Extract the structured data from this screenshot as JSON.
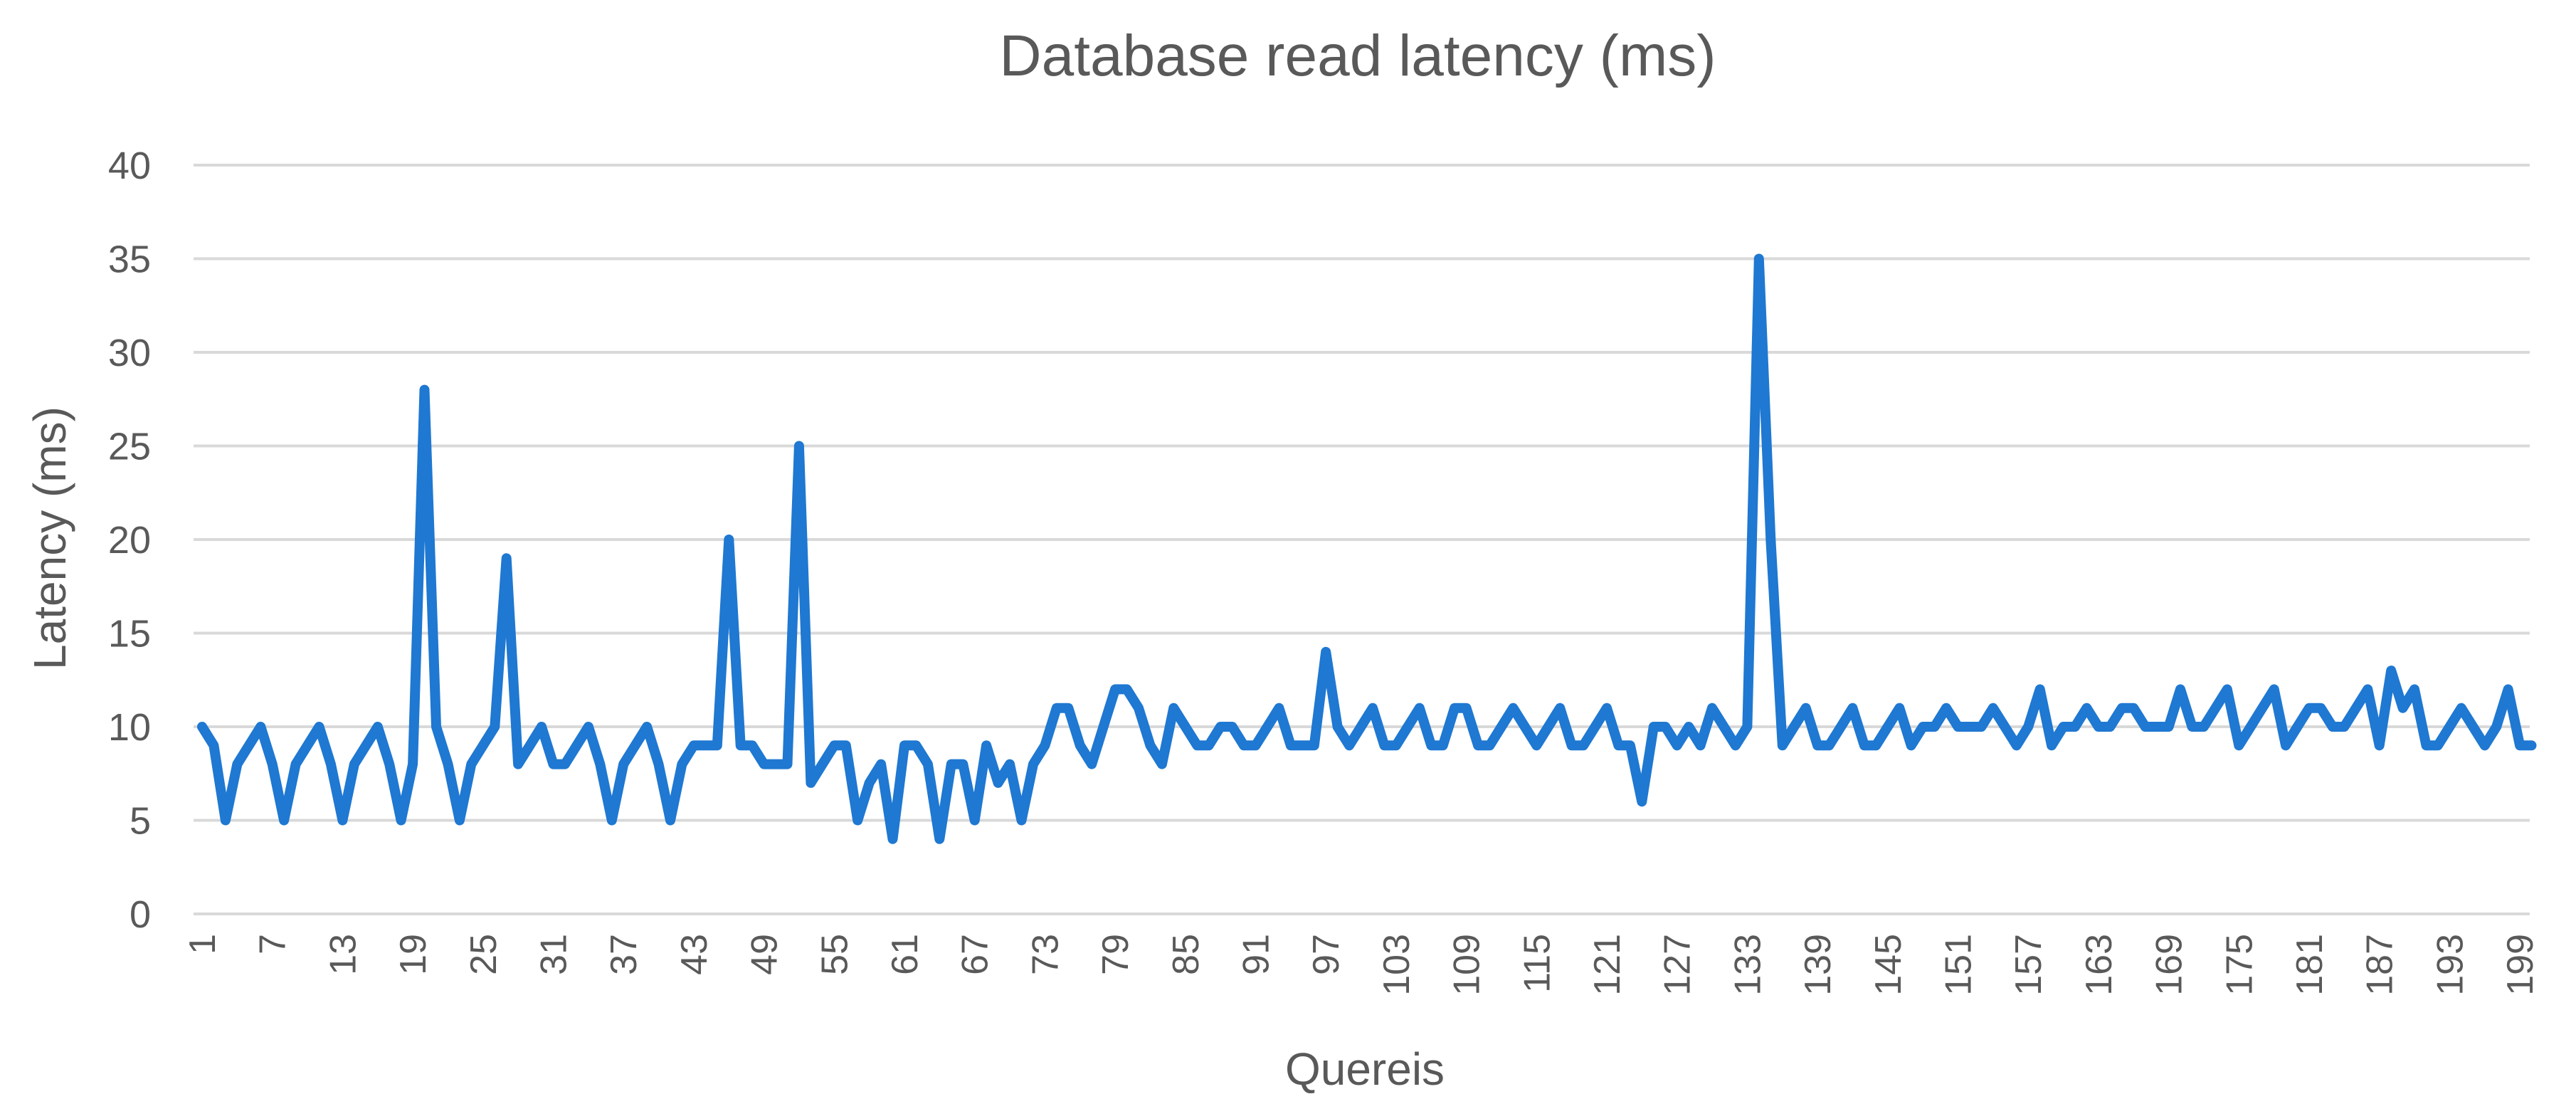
{
  "chart_data": {
    "type": "line",
    "title": "Database read latency (ms)",
    "xlabel": "Quereis",
    "ylabel": "Latency (ms)",
    "ylim": [
      0,
      40
    ],
    "yticks": [
      0,
      5,
      10,
      15,
      20,
      25,
      30,
      35,
      40
    ],
    "grid": true,
    "legend": "none",
    "x_tick_labels": [
      "1",
      "7",
      "13",
      "19",
      "25",
      "31",
      "37",
      "43",
      "49",
      "55",
      "61",
      "67",
      "73",
      "79",
      "85",
      "91",
      "97",
      "103",
      "109",
      "115",
      "121",
      "127",
      "133",
      "139",
      "145",
      "151",
      "157",
      "163",
      "169",
      "175",
      "181",
      "187",
      "193",
      "199"
    ],
    "x_start": 1,
    "color": "#1f78d1",
    "series": [
      {
        "values": [
          10,
          9,
          5,
          8,
          9,
          10,
          8,
          5,
          8,
          9,
          10,
          8,
          5,
          8,
          9,
          10,
          8,
          5,
          8,
          28,
          10,
          8,
          5,
          8,
          9,
          10,
          19,
          8,
          9,
          10,
          8,
          8,
          9,
          10,
          8,
          5,
          8,
          9,
          10,
          8,
          5,
          8,
          9,
          9,
          9,
          20,
          9,
          9,
          8,
          8,
          8,
          25,
          7,
          8,
          9,
          9,
          5,
          7,
          8,
          4,
          9,
          9,
          8,
          4,
          8,
          8,
          5,
          9,
          7,
          8,
          5,
          8,
          9,
          11,
          11,
          9,
          8,
          10,
          12,
          12,
          11,
          9,
          8,
          11,
          10,
          9,
          9,
          10,
          10,
          9,
          9,
          10,
          11,
          9,
          9,
          9,
          14,
          10,
          9,
          10,
          11,
          9,
          9,
          10,
          11,
          9,
          9,
          11,
          11,
          9,
          9,
          10,
          11,
          10,
          9,
          10,
          11,
          9,
          9,
          10,
          11,
          9,
          9,
          6,
          10,
          10,
          9,
          10,
          9,
          11,
          10,
          9,
          10,
          35,
          20,
          9,
          10,
          11,
          9,
          9,
          10,
          11,
          9,
          9,
          10,
          11,
          9,
          10,
          10,
          11,
          10,
          10,
          10,
          11,
          10,
          9,
          10,
          12,
          9,
          10,
          10,
          11,
          10,
          10,
          11,
          11,
          10,
          10,
          10,
          12,
          10,
          10,
          11,
          12,
          9,
          10,
          11,
          12,
          9,
          10,
          11,
          11,
          10,
          10,
          11,
          12,
          9,
          13,
          11,
          12,
          9,
          9,
          10,
          11,
          10,
          9,
          10,
          12,
          9,
          9
        ]
      }
    ]
  }
}
